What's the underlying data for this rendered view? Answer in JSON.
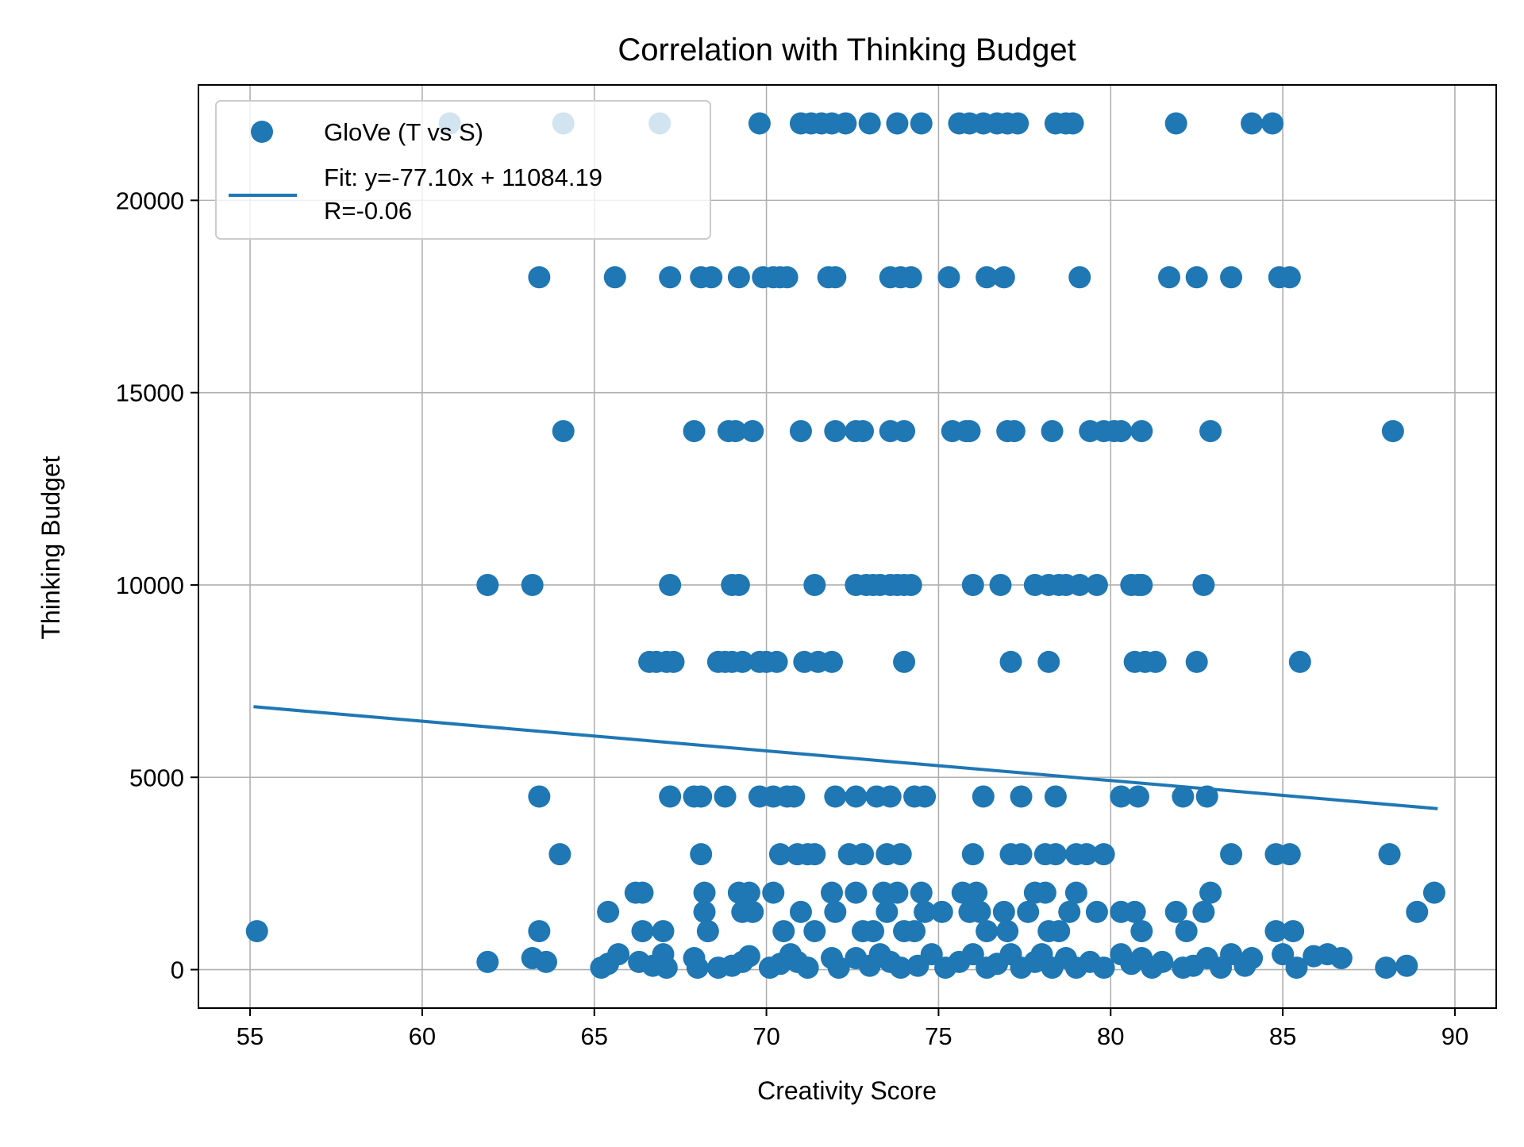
{
  "chart_data": {
    "type": "scatter",
    "title": "Correlation with Thinking Budget",
    "xlabel": "Creativity Score",
    "ylabel": "Thinking Budget",
    "xlim": [
      53.5,
      91.2
    ],
    "ylim": [
      -1000,
      23000
    ],
    "xticks": [
      55,
      60,
      65,
      70,
      75,
      80,
      85,
      90
    ],
    "yticks": [
      0,
      5000,
      10000,
      15000,
      20000
    ],
    "grid": true,
    "legend_position": "top-left",
    "color": "#1f77b4",
    "series": [
      {
        "name": "GloVe (T vs S)",
        "kind": "scatter",
        "points": [
          [
            60.8,
            22000
          ],
          [
            64.1,
            22000
          ],
          [
            66.9,
            22000
          ],
          [
            69.8,
            22000
          ],
          [
            71.0,
            22000
          ],
          [
            71.3,
            22000
          ],
          [
            71.6,
            22000
          ],
          [
            71.9,
            22000
          ],
          [
            72.3,
            22000
          ],
          [
            73.0,
            22000
          ],
          [
            73.8,
            22000
          ],
          [
            74.5,
            22000
          ],
          [
            75.6,
            22000
          ],
          [
            75.9,
            22000
          ],
          [
            76.3,
            22000
          ],
          [
            76.7,
            22000
          ],
          [
            77.0,
            22000
          ],
          [
            77.3,
            22000
          ],
          [
            78.4,
            22000
          ],
          [
            78.7,
            22000
          ],
          [
            78.9,
            22000
          ],
          [
            81.9,
            22000
          ],
          [
            84.1,
            22000
          ],
          [
            84.7,
            22000
          ],
          [
            63.4,
            18000
          ],
          [
            65.6,
            18000
          ],
          [
            67.2,
            18000
          ],
          [
            68.1,
            18000
          ],
          [
            68.4,
            18000
          ],
          [
            69.2,
            18000
          ],
          [
            69.9,
            18000
          ],
          [
            70.2,
            18000
          ],
          [
            70.4,
            18000
          ],
          [
            70.6,
            18000
          ],
          [
            71.8,
            18000
          ],
          [
            72.0,
            18000
          ],
          [
            73.6,
            18000
          ],
          [
            73.9,
            18000
          ],
          [
            74.2,
            18000
          ],
          [
            75.3,
            18000
          ],
          [
            76.4,
            18000
          ],
          [
            76.9,
            18000
          ],
          [
            79.1,
            18000
          ],
          [
            81.7,
            18000
          ],
          [
            82.5,
            18000
          ],
          [
            83.5,
            18000
          ],
          [
            84.9,
            18000
          ],
          [
            85.2,
            18000
          ],
          [
            64.1,
            14000
          ],
          [
            67.9,
            14000
          ],
          [
            68.9,
            14000
          ],
          [
            69.1,
            14000
          ],
          [
            69.6,
            14000
          ],
          [
            71.0,
            14000
          ],
          [
            72.0,
            14000
          ],
          [
            72.6,
            14000
          ],
          [
            72.8,
            14000
          ],
          [
            73.6,
            14000
          ],
          [
            74.0,
            14000
          ],
          [
            75.4,
            14000
          ],
          [
            75.8,
            14000
          ],
          [
            75.9,
            14000
          ],
          [
            77.0,
            14000
          ],
          [
            77.2,
            14000
          ],
          [
            78.3,
            14000
          ],
          [
            79.4,
            14000
          ],
          [
            79.8,
            14000
          ],
          [
            80.1,
            14000
          ],
          [
            80.3,
            14000
          ],
          [
            80.9,
            14000
          ],
          [
            82.9,
            14000
          ],
          [
            88.2,
            14000
          ],
          [
            61.9,
            10000
          ],
          [
            63.2,
            10000
          ],
          [
            67.2,
            10000
          ],
          [
            69.0,
            10000
          ],
          [
            69.2,
            10000
          ],
          [
            71.4,
            10000
          ],
          [
            72.6,
            10000
          ],
          [
            72.9,
            10000
          ],
          [
            73.1,
            10000
          ],
          [
            73.3,
            10000
          ],
          [
            73.6,
            10000
          ],
          [
            73.8,
            10000
          ],
          [
            74.0,
            10000
          ],
          [
            74.2,
            10000
          ],
          [
            76.0,
            10000
          ],
          [
            76.8,
            10000
          ],
          [
            77.8,
            10000
          ],
          [
            78.2,
            10000
          ],
          [
            78.5,
            10000
          ],
          [
            78.7,
            10000
          ],
          [
            79.1,
            10000
          ],
          [
            79.6,
            10000
          ],
          [
            80.6,
            10000
          ],
          [
            80.8,
            10000
          ],
          [
            80.9,
            10000
          ],
          [
            82.7,
            10000
          ],
          [
            66.6,
            8000
          ],
          [
            66.8,
            8000
          ],
          [
            67.1,
            8000
          ],
          [
            67.3,
            8000
          ],
          [
            68.6,
            8000
          ],
          [
            68.8,
            8000
          ],
          [
            69.0,
            8000
          ],
          [
            69.3,
            8000
          ],
          [
            69.8,
            8000
          ],
          [
            70.0,
            8000
          ],
          [
            70.3,
            8000
          ],
          [
            71.1,
            8000
          ],
          [
            71.5,
            8000
          ],
          [
            71.9,
            8000
          ],
          [
            74.0,
            8000
          ],
          [
            77.1,
            8000
          ],
          [
            78.2,
            8000
          ],
          [
            80.7,
            8000
          ],
          [
            81.0,
            8000
          ],
          [
            81.3,
            8000
          ],
          [
            82.5,
            8000
          ],
          [
            85.5,
            8000
          ],
          [
            63.4,
            4500
          ],
          [
            67.2,
            4500
          ],
          [
            67.9,
            4500
          ],
          [
            68.1,
            4500
          ],
          [
            68.8,
            4500
          ],
          [
            69.8,
            4500
          ],
          [
            70.2,
            4500
          ],
          [
            70.6,
            4500
          ],
          [
            70.8,
            4500
          ],
          [
            72.0,
            4500
          ],
          [
            72.6,
            4500
          ],
          [
            73.2,
            4500
          ],
          [
            73.6,
            4500
          ],
          [
            74.3,
            4500
          ],
          [
            74.6,
            4500
          ],
          [
            76.3,
            4500
          ],
          [
            77.4,
            4500
          ],
          [
            78.4,
            4500
          ],
          [
            80.3,
            4500
          ],
          [
            80.8,
            4500
          ],
          [
            82.1,
            4500
          ],
          [
            82.8,
            4500
          ],
          [
            64.0,
            3000
          ],
          [
            68.1,
            3000
          ],
          [
            70.4,
            3000
          ],
          [
            70.9,
            3000
          ],
          [
            71.2,
            3000
          ],
          [
            71.4,
            3000
          ],
          [
            72.4,
            3000
          ],
          [
            72.8,
            3000
          ],
          [
            73.5,
            3000
          ],
          [
            73.9,
            3000
          ],
          [
            76.0,
            3000
          ],
          [
            77.1,
            3000
          ],
          [
            77.4,
            3000
          ],
          [
            78.1,
            3000
          ],
          [
            78.4,
            3000
          ],
          [
            79.0,
            3000
          ],
          [
            79.3,
            3000
          ],
          [
            79.8,
            3000
          ],
          [
            83.5,
            3000
          ],
          [
            84.8,
            3000
          ],
          [
            85.2,
            3000
          ],
          [
            88.1,
            3000
          ],
          [
            65.4,
            1500
          ],
          [
            66.2,
            2000
          ],
          [
            66.4,
            2000
          ],
          [
            68.2,
            2000
          ],
          [
            68.2,
            1500
          ],
          [
            68.3,
            1000
          ],
          [
            69.2,
            2000
          ],
          [
            69.5,
            2000
          ],
          [
            69.3,
            1500
          ],
          [
            69.6,
            1500
          ],
          [
            70.2,
            2000
          ],
          [
            70.5,
            1000
          ],
          [
            71.0,
            1500
          ],
          [
            71.4,
            1000
          ],
          [
            71.9,
            2000
          ],
          [
            72.0,
            1500
          ],
          [
            72.6,
            2000
          ],
          [
            72.8,
            1000
          ],
          [
            73.1,
            1000
          ],
          [
            73.4,
            2000
          ],
          [
            73.5,
            1500
          ],
          [
            73.8,
            2000
          ],
          [
            74.0,
            1000
          ],
          [
            74.3,
            1000
          ],
          [
            74.5,
            2000
          ],
          [
            74.6,
            1500
          ],
          [
            75.1,
            1500
          ],
          [
            75.7,
            2000
          ],
          [
            75.9,
            1500
          ],
          [
            76.1,
            2000
          ],
          [
            76.2,
            1500
          ],
          [
            76.4,
            1000
          ],
          [
            76.9,
            1500
          ],
          [
            77.0,
            1000
          ],
          [
            77.6,
            1500
          ],
          [
            77.8,
            2000
          ],
          [
            78.1,
            2000
          ],
          [
            78.2,
            1000
          ],
          [
            78.5,
            1000
          ],
          [
            78.8,
            1500
          ],
          [
            79.0,
            2000
          ],
          [
            79.6,
            1500
          ],
          [
            80.3,
            1500
          ],
          [
            80.7,
            1500
          ],
          [
            80.9,
            1000
          ],
          [
            81.9,
            1500
          ],
          [
            82.2,
            1000
          ],
          [
            82.7,
            1500
          ],
          [
            82.9,
            2000
          ],
          [
            84.8,
            1000
          ],
          [
            85.3,
            1000
          ],
          [
            88.9,
            1500
          ],
          [
            89.4,
            2000
          ],
          [
            55.2,
            1000
          ],
          [
            63.4,
            1000
          ],
          [
            66.4,
            1000
          ],
          [
            67.0,
            1000
          ],
          [
            61.9,
            200
          ],
          [
            63.2,
            300
          ],
          [
            63.6,
            200
          ],
          [
            65.2,
            50
          ],
          [
            65.4,
            150
          ],
          [
            65.7,
            400
          ],
          [
            66.3,
            200
          ],
          [
            66.7,
            100
          ],
          [
            67.0,
            400
          ],
          [
            67.1,
            50
          ],
          [
            67.9,
            300
          ],
          [
            68.0,
            50
          ],
          [
            68.6,
            50
          ],
          [
            69.0,
            100
          ],
          [
            69.3,
            200
          ],
          [
            69.5,
            350
          ],
          [
            70.1,
            50
          ],
          [
            70.4,
            150
          ],
          [
            70.7,
            400
          ],
          [
            70.9,
            200
          ],
          [
            71.2,
            50
          ],
          [
            71.9,
            300
          ],
          [
            72.1,
            50
          ],
          [
            72.6,
            300
          ],
          [
            73.0,
            100
          ],
          [
            73.3,
            400
          ],
          [
            73.6,
            200
          ],
          [
            73.9,
            50
          ],
          [
            74.4,
            100
          ],
          [
            74.8,
            400
          ],
          [
            75.2,
            50
          ],
          [
            75.6,
            200
          ],
          [
            76.0,
            400
          ],
          [
            76.4,
            50
          ],
          [
            76.7,
            150
          ],
          [
            77.1,
            400
          ],
          [
            77.4,
            50
          ],
          [
            77.8,
            200
          ],
          [
            78.0,
            400
          ],
          [
            78.3,
            50
          ],
          [
            78.7,
            300
          ],
          [
            79.0,
            50
          ],
          [
            79.4,
            200
          ],
          [
            79.8,
            50
          ],
          [
            80.3,
            400
          ],
          [
            80.6,
            150
          ],
          [
            80.9,
            300
          ],
          [
            81.2,
            50
          ],
          [
            81.5,
            200
          ],
          [
            82.1,
            50
          ],
          [
            82.4,
            100
          ],
          [
            82.8,
            300
          ],
          [
            83.2,
            50
          ],
          [
            83.5,
            400
          ],
          [
            83.9,
            100
          ],
          [
            84.1,
            300
          ],
          [
            85.0,
            400
          ],
          [
            85.4,
            50
          ],
          [
            85.9,
            350
          ],
          [
            86.3,
            400
          ],
          [
            86.7,
            300
          ],
          [
            88.0,
            50
          ],
          [
            88.6,
            100
          ]
        ]
      },
      {
        "name": "Fit: y=-77.10x + 11084.19",
        "name_line2": "R=-0.06",
        "kind": "line",
        "x": [
          55.1,
          89.5
        ],
        "y": [
          6835,
          4184
        ]
      }
    ]
  }
}
